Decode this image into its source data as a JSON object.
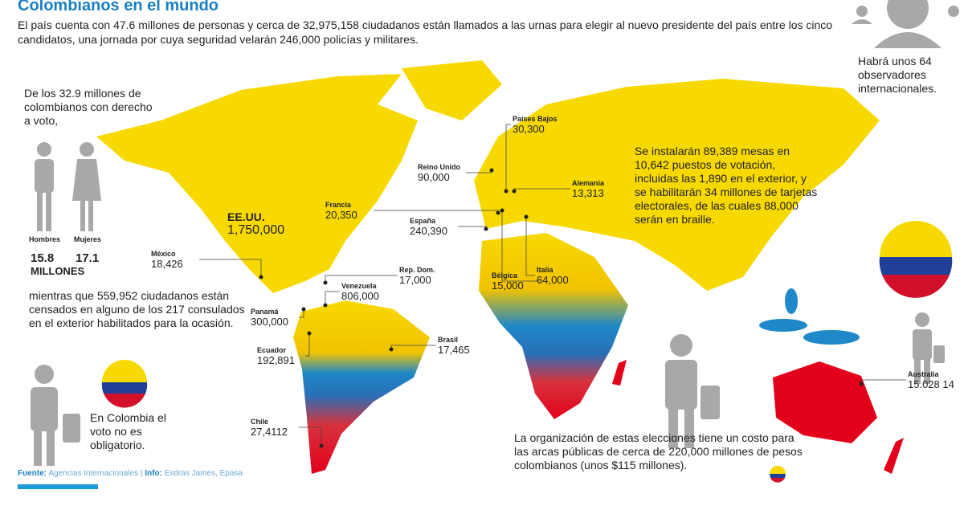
{
  "header": {
    "title": "Colombianos en el mundo",
    "intro": "El país cuenta con 47.6 millones de personas y cerca de 32,975,158 ciudadanos están llamados a las urnas para elegir al nuevo presidente del país entre los cinco candidatos, una jornada por cuya seguridad velarán 246,000 policías y militares."
  },
  "observers": "Habrá unos 64 observadores internacionales.",
  "voters": {
    "intro": "De los 32.9 millones de colombianos con derecho a voto,",
    "men": {
      "label": "Hombres",
      "value": "15.8"
    },
    "women": {
      "label": "Mujeres",
      "value": "17.1"
    },
    "unit": "MILLONES",
    "abroad": "mientras que 559,952 ciudadanos están censados en alguno de los 217 consulados en el exterior habilitados para la ocasión."
  },
  "mandatory_note": "En Colombia el voto no es obligatorio.",
  "polling_note": "Se instalarán 89,389 mesas en 10,642 puestos de votación, incluidas las 1,890 en el exterior, y se habilitarán 34 millones de tarjetas electorales, de las cuales 88,000 serán en braille.",
  "cost_note": "La organización de estas elecciones tiene un costo para las arcas públicas de cerca de 220,000 millones de pesos colombianos (unos $115 millones).",
  "countries": [
    {
      "name": "Países Bajos",
      "voters": "30,300"
    },
    {
      "name": "Reino Unido",
      "voters": "90,000"
    },
    {
      "name": "Alemania",
      "voters": "13,313"
    },
    {
      "name": "Francia",
      "voters": "20,350"
    },
    {
      "name": "España",
      "voters": "240,390"
    },
    {
      "name": "EE.UU.",
      "voters": "1,750,000"
    },
    {
      "name": "México",
      "voters": "18,426"
    },
    {
      "name": "Rep. Dom.",
      "voters": "17,000"
    },
    {
      "name": "Venezuela",
      "voters": "806,000"
    },
    {
      "name": "Panamá",
      "voters": "300,000"
    },
    {
      "name": "Bélgica",
      "voters": "15,000"
    },
    {
      "name": "Italia",
      "voters": "64,000"
    },
    {
      "name": "Ecuador",
      "voters": "192,891"
    },
    {
      "name": "Brasil",
      "voters": "17,465"
    },
    {
      "name": "Chile",
      "voters": "27,4112"
    },
    {
      "name": "Australia",
      "voters": "15.028 14"
    }
  ],
  "source": {
    "label": "Fuente:",
    "text": "Agencias Internacionales",
    "separator": "|",
    "info_label": "Info:",
    "info_text": "Esdras James, Epasa"
  }
}
